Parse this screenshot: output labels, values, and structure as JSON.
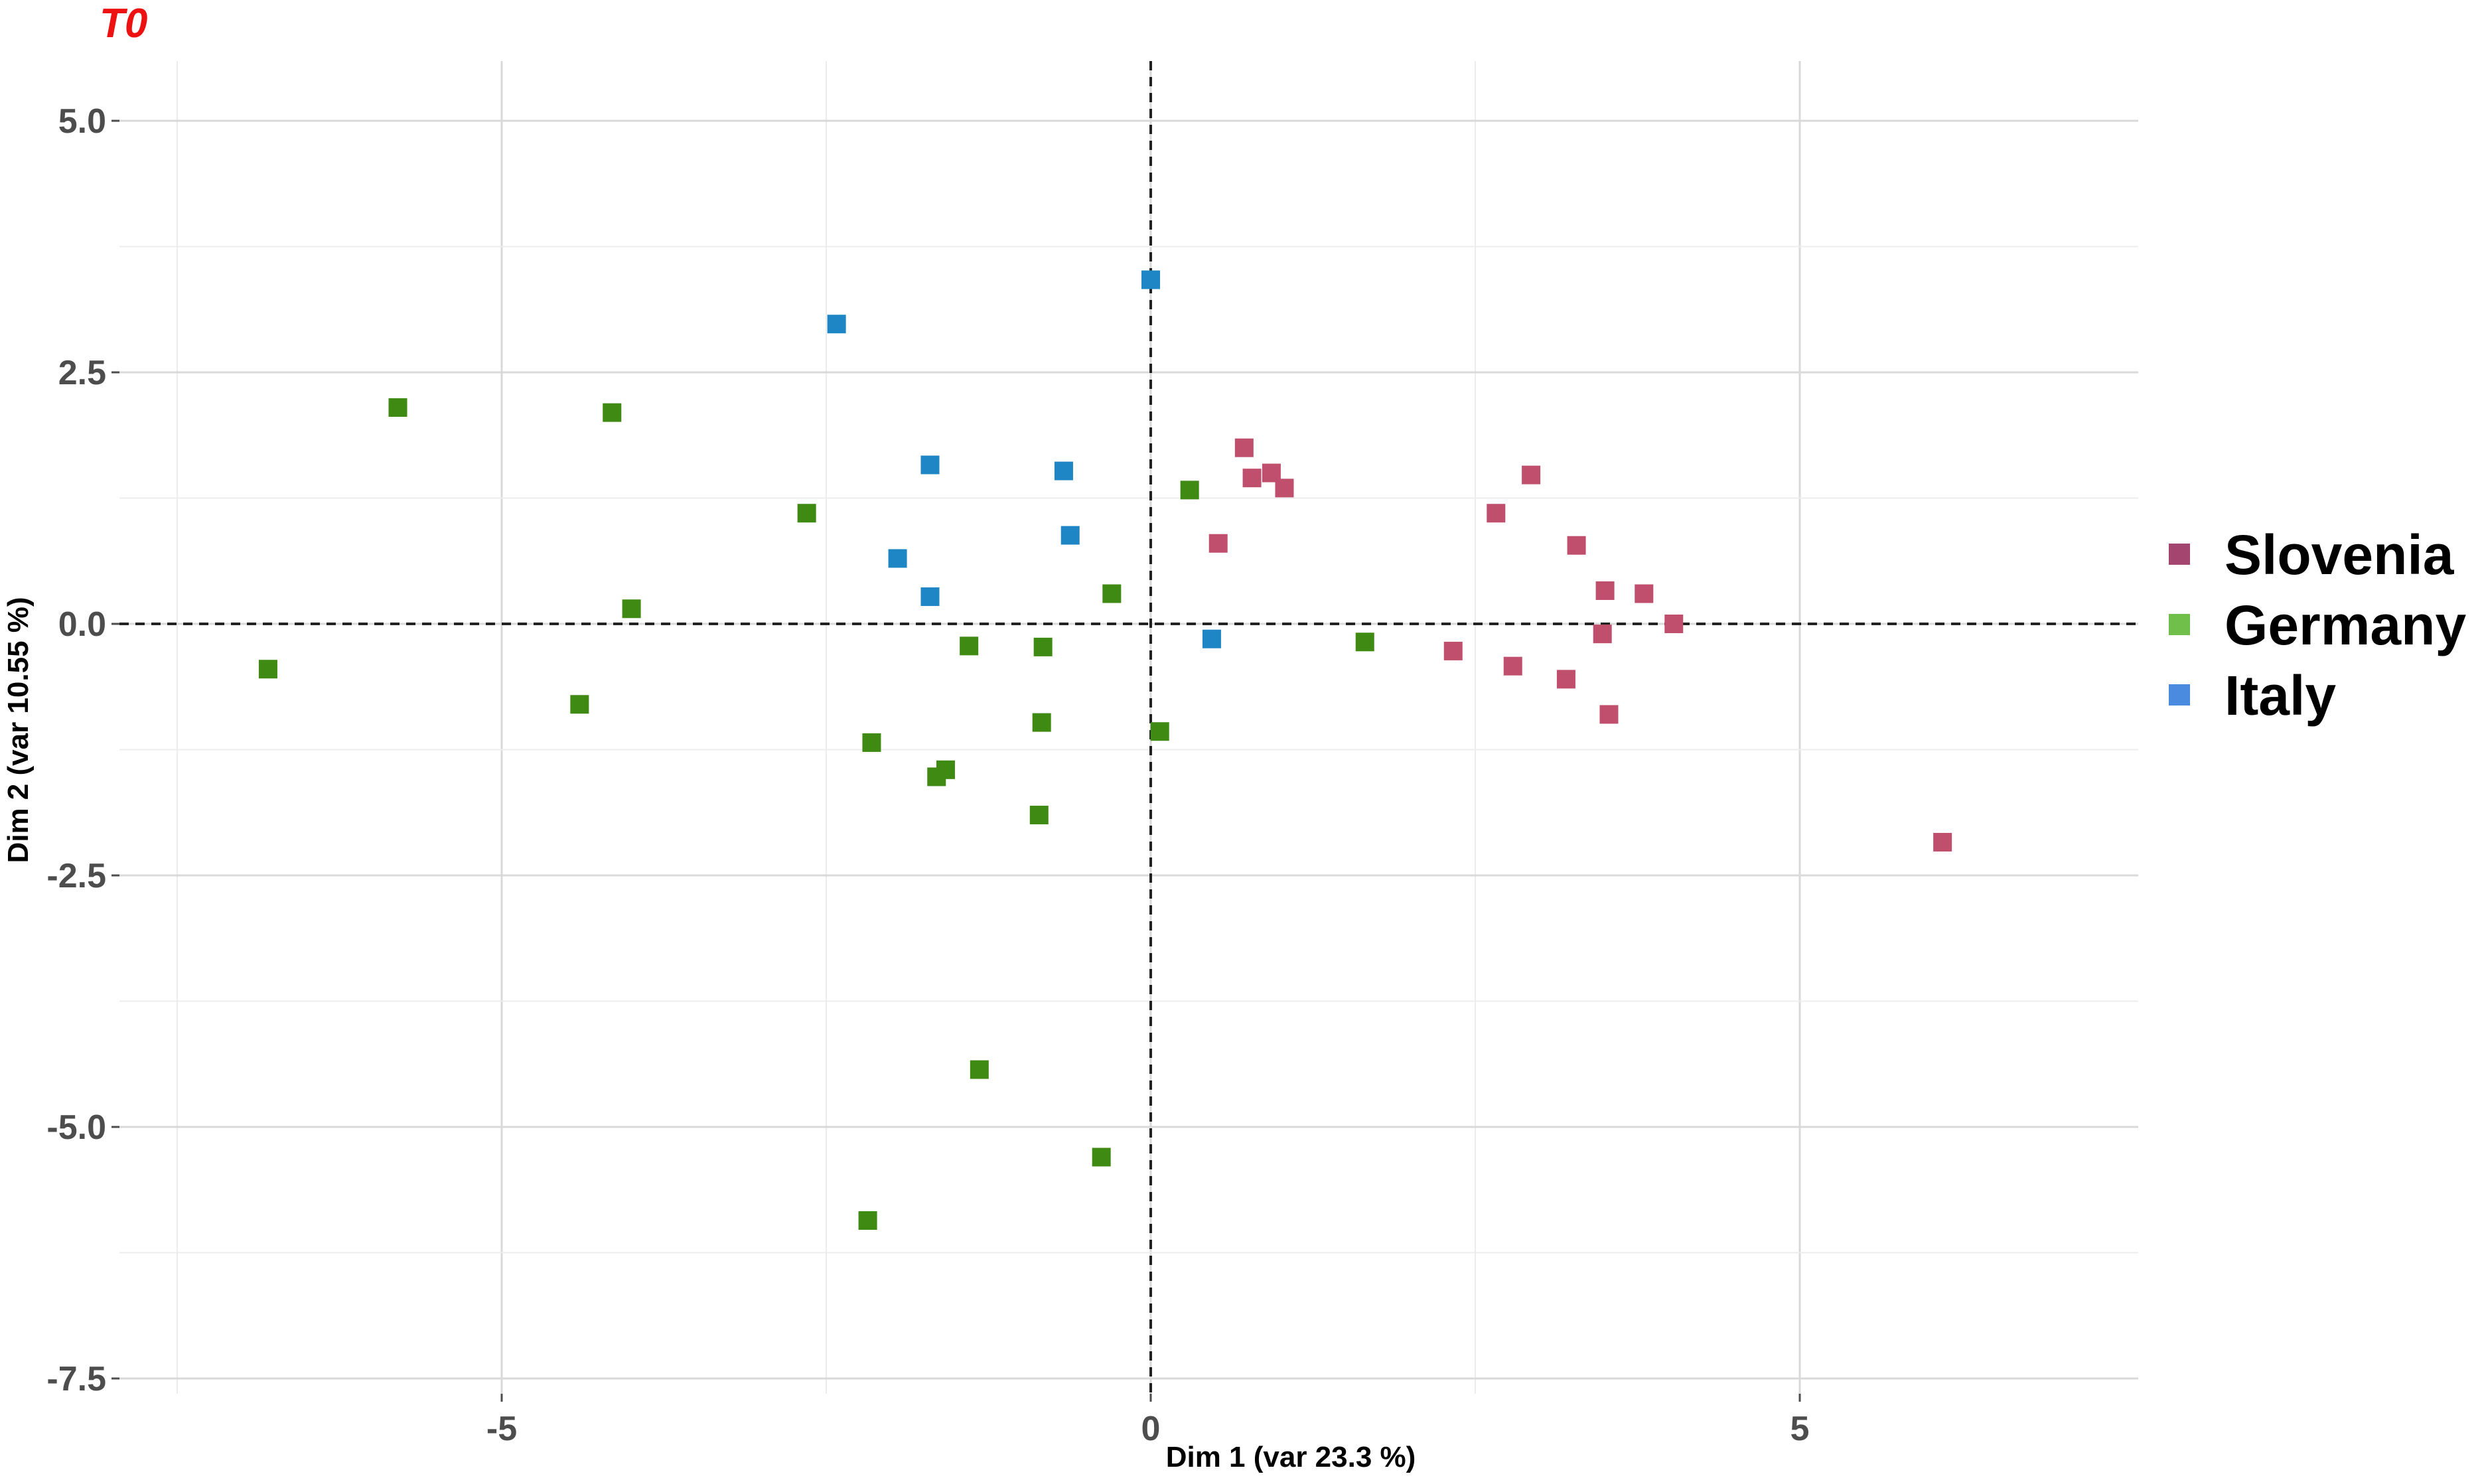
{
  "chart_data": {
    "type": "scatter",
    "title": "T0",
    "xlabel": "Dim 1 (var  23.3 %)",
    "ylabel": "Dim 2 (var  10.55 %)",
    "xlim": [
      -7.8,
      7.5
    ],
    "ylim": [
      -7.6,
      5.6
    ],
    "x_ticks": [
      -5,
      0,
      5
    ],
    "x_tick_labels": [
      "-5",
      "0",
      "5"
    ],
    "y_ticks": [
      5,
      2.5,
      0,
      -2.5,
      -5,
      -7.5
    ],
    "y_tick_labels": [
      "5.0",
      "2.5",
      "0.0",
      "-2.5",
      "-5.0",
      "-7.5"
    ],
    "grid": true,
    "reference_lines": {
      "x": 0,
      "y": 0,
      "style": "dashed"
    },
    "legend_position": "right",
    "marker": "square",
    "series": [
      {
        "name": "Slovenia",
        "legend_color": "#a3456f",
        "point_color": "#c04f6e",
        "points": [
          [
            0.72,
            1.75
          ],
          [
            0.78,
            1.45
          ],
          [
            0.93,
            1.5
          ],
          [
            1.03,
            1.35
          ],
          [
            0.52,
            0.8
          ],
          [
            2.66,
            1.1
          ],
          [
            2.93,
            1.48
          ],
          [
            3.28,
            0.78
          ],
          [
            3.5,
            0.33
          ],
          [
            3.8,
            0.3
          ],
          [
            4.03,
            0.0
          ],
          [
            3.48,
            -0.1
          ],
          [
            2.33,
            -0.27
          ],
          [
            2.79,
            -0.42
          ],
          [
            3.2,
            -0.55
          ],
          [
            3.53,
            -0.9
          ],
          [
            6.1,
            -2.17
          ]
        ]
      },
      {
        "name": "Germany",
        "legend_color": "#6fbf4a",
        "point_color": "#3e8a12",
        "points": [
          [
            -6.8,
            -0.45
          ],
          [
            -5.8,
            2.15
          ],
          [
            -4.15,
            2.1
          ],
          [
            -4.0,
            0.15
          ],
          [
            -4.4,
            -0.8
          ],
          [
            -2.65,
            1.1
          ],
          [
            -2.15,
            -1.18
          ],
          [
            -1.65,
            -1.52
          ],
          [
            -1.58,
            -1.45
          ],
          [
            -1.4,
            -0.22
          ],
          [
            -0.83,
            -0.23
          ],
          [
            -0.84,
            -0.98
          ],
          [
            -0.86,
            -1.9
          ],
          [
            -0.3,
            0.3
          ],
          [
            0.07,
            -1.07
          ],
          [
            0.3,
            1.33
          ],
          [
            1.65,
            -0.18
          ],
          [
            -1.32,
            -4.43
          ],
          [
            -0.38,
            -5.3
          ],
          [
            -2.18,
            -5.93
          ]
        ]
      },
      {
        "name": "Italy",
        "legend_color": "#4a8be0",
        "point_color": "#1e86c4",
        "points": [
          [
            0.0,
            3.42
          ],
          [
            -2.42,
            2.98
          ],
          [
            -1.7,
            1.58
          ],
          [
            -0.67,
            1.52
          ],
          [
            -0.62,
            0.88
          ],
          [
            -1.95,
            0.65
          ],
          [
            -1.7,
            0.27
          ],
          [
            0.47,
            -0.15
          ]
        ]
      }
    ]
  }
}
